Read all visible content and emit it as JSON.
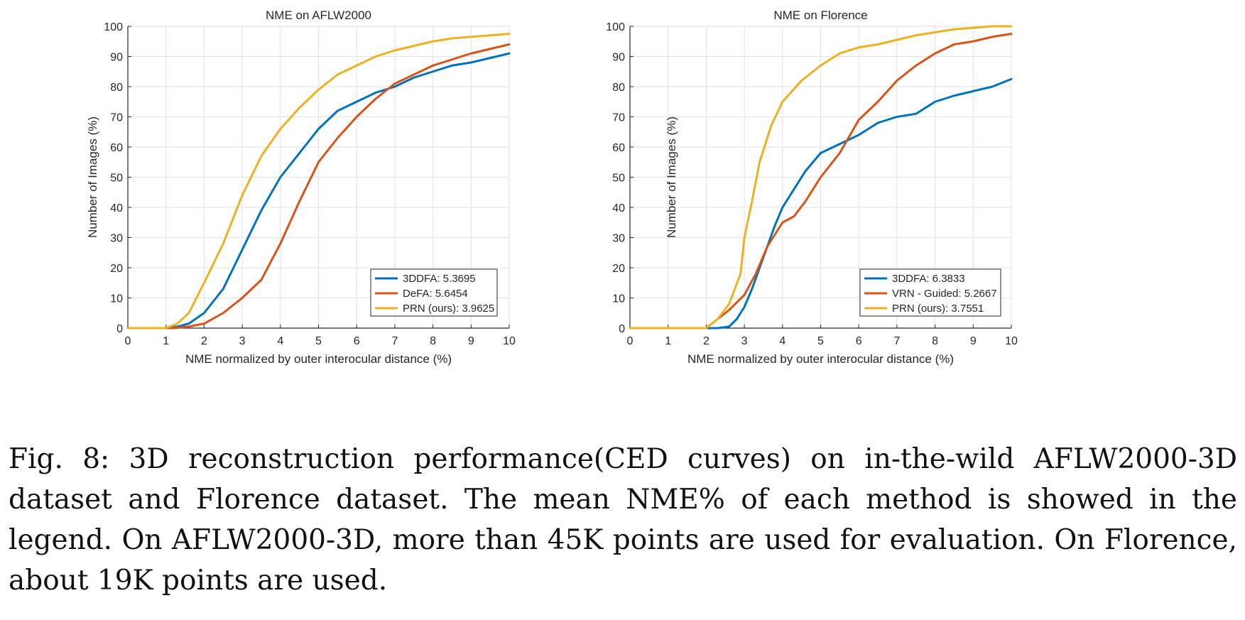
{
  "chart_data": [
    {
      "type": "line",
      "title": "NME on AFLW2000",
      "xlabel": "NME normalized by outer interocular distance (%)",
      "ylabel": "Number of Images (%)",
      "xlim": [
        0,
        10
      ],
      "ylim": [
        0,
        100
      ],
      "xticks": [
        "0",
        "1",
        "2",
        "3",
        "4",
        "5",
        "6",
        "7",
        "8",
        "9",
        "10"
      ],
      "yticks": [
        "0",
        "10",
        "20",
        "30",
        "40",
        "50",
        "60",
        "70",
        "80",
        "90",
        "100"
      ],
      "grid": true,
      "legend_position": "bottom-right",
      "series": [
        {
          "name": "3DDFA: 5.3695",
          "color": "#0072BD",
          "x": [
            0,
            1.0,
            1.3,
            1.6,
            2.0,
            2.5,
            3.0,
            3.5,
            4.0,
            4.5,
            5.0,
            5.5,
            6.0,
            6.5,
            7.0,
            7.5,
            8.0,
            8.5,
            9.0,
            9.5,
            10.0
          ],
          "y": [
            0,
            0,
            0.5,
            1.5,
            5,
            13,
            26,
            39,
            50,
            58,
            66,
            72,
            75,
            78,
            80,
            83,
            85,
            87,
            88,
            89.5,
            91
          ]
        },
        {
          "name": "DeFA: 5.6454",
          "color": "#D95319",
          "x": [
            0,
            1.2,
            1.6,
            2.0,
            2.5,
            3.0,
            3.5,
            4.0,
            4.5,
            5.0,
            5.5,
            6.0,
            6.5,
            7.0,
            7.5,
            8.0,
            8.5,
            9.0,
            9.5,
            10.0
          ],
          "y": [
            0,
            0,
            0.5,
            1.5,
            5,
            10,
            16,
            28,
            42,
            55,
            63,
            70,
            76,
            81,
            84,
            87,
            89,
            91,
            92.5,
            94
          ]
        },
        {
          "name": "PRN (ours): 3.9625",
          "color": "#EDB120",
          "x": [
            0,
            1.0,
            1.3,
            1.6,
            2.0,
            2.5,
            3.0,
            3.5,
            4.0,
            4.5,
            5.0,
            5.5,
            6.0,
            6.5,
            7.0,
            7.5,
            8.0,
            8.5,
            9.0,
            9.5,
            10.0
          ],
          "y": [
            0,
            0,
            1.5,
            5,
            15,
            28,
            44,
            57,
            66,
            73,
            79,
            84,
            87,
            90,
            92,
            93.5,
            95,
            96,
            96.5,
            97,
            97.5
          ]
        }
      ]
    },
    {
      "type": "line",
      "title": "NME on Florence",
      "xlabel": "NME normalized by outer interocular distance (%)",
      "ylabel": "Number of Images (%)",
      "xlim": [
        0,
        10
      ],
      "ylim": [
        0,
        100
      ],
      "xticks": [
        "0",
        "1",
        "2",
        "3",
        "4",
        "5",
        "6",
        "7",
        "8",
        "9",
        "10"
      ],
      "yticks": [
        "0",
        "10",
        "20",
        "30",
        "40",
        "50",
        "60",
        "70",
        "80",
        "90",
        "100"
      ],
      "grid": true,
      "legend_position": "bottom-right",
      "series": [
        {
          "name": "3DDFA: 6.3833",
          "color": "#0072BD",
          "x": [
            0,
            2.3,
            2.6,
            2.8,
            3.0,
            3.2,
            3.4,
            3.6,
            3.8,
            4.0,
            4.3,
            4.6,
            5.0,
            5.5,
            6.0,
            6.5,
            7.0,
            7.5,
            8.0,
            8.5,
            9.0,
            9.5,
            10.0
          ],
          "y": [
            0,
            0,
            0.5,
            3,
            7,
            13,
            20,
            27,
            34,
            40,
            46,
            52,
            58,
            61,
            64,
            68,
            70,
            71,
            75,
            77,
            78.5,
            80,
            82.5
          ]
        },
        {
          "name": "VRN - Guided: 5.2667",
          "color": "#D95319",
          "x": [
            0,
            2.0,
            2.3,
            2.6,
            3.0,
            3.3,
            3.6,
            4.0,
            4.3,
            4.6,
            5.0,
            5.5,
            6.0,
            6.5,
            7.0,
            7.5,
            8.0,
            8.5,
            9.0,
            9.5,
            10.0
          ],
          "y": [
            0,
            0,
            3,
            6,
            11,
            18,
            27,
            35,
            37,
            42,
            50,
            58,
            69,
            75,
            82,
            87,
            91,
            94,
            95,
            96.5,
            97.5
          ]
        },
        {
          "name": "PRN (ours): 3.7551",
          "color": "#EDB120",
          "x": [
            0,
            2.0,
            2.3,
            2.6,
            2.9,
            3.0,
            3.2,
            3.4,
            3.7,
            4.0,
            4.5,
            5.0,
            5.5,
            6.0,
            6.5,
            7.0,
            7.5,
            8.0,
            8.5,
            9.0,
            9.5,
            10.0
          ],
          "y": [
            0,
            0,
            3,
            8,
            18,
            30,
            42,
            55,
            67,
            75,
            82,
            87,
            91,
            93,
            94,
            95.5,
            97,
            98,
            99,
            99.5,
            100,
            100
          ]
        }
      ]
    }
  ],
  "caption": {
    "label": "Fig. 8:",
    "text": "3D reconstruction performance(CED curves) on in-the-wild AFLW2000-3D dataset and Florence dataset. The mean NME% of each method is showed in the legend. On AFLW2000-3D, more than 45K points are used for evaluation. On Florence, about 19K points are used."
  }
}
